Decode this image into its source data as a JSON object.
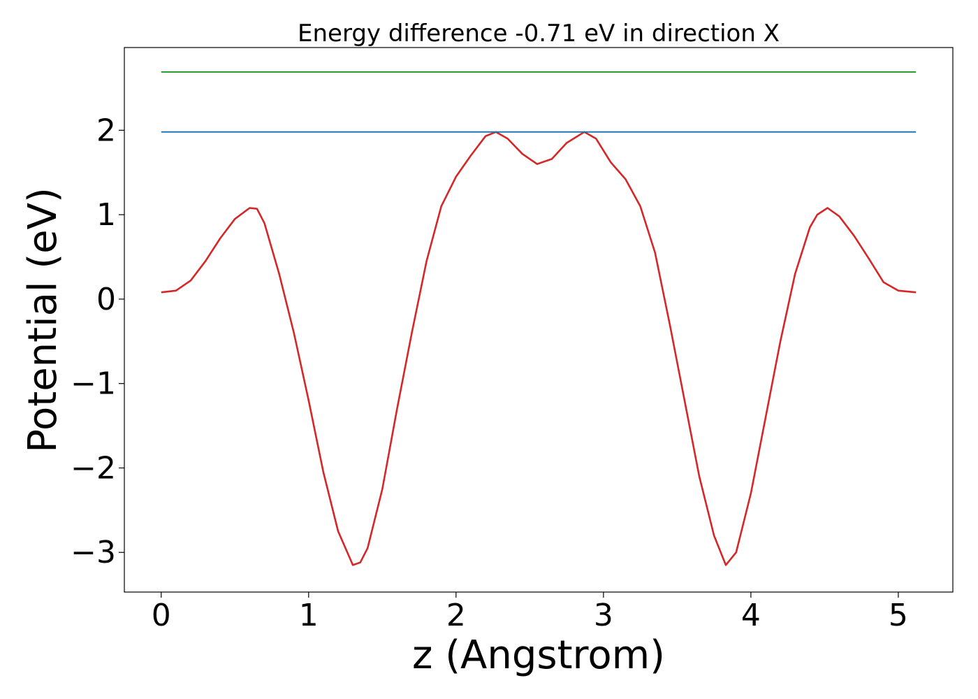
{
  "chart_data": {
    "type": "line",
    "title": "Energy difference -0.71 eV in direction X",
    "xlabel": "z (Angstrom)",
    "ylabel": "Potential (eV)",
    "xlim": [
      -0.25,
      5.37
    ],
    "ylim": [
      -3.47,
      2.98
    ],
    "xticks": [
      0,
      1,
      2,
      3,
      4,
      5
    ],
    "xtick_labels": [
      "0",
      "1",
      "2",
      "3",
      "4",
      "5"
    ],
    "yticks": [
      -3,
      -2,
      -1,
      0,
      1,
      2
    ],
    "ytick_labels": [
      "−3",
      "−2",
      "−1",
      "0",
      "1",
      "2"
    ],
    "grid": false,
    "legend": "none",
    "series": [
      {
        "color": "#d62728",
        "x": [
          0,
          0.1,
          0.2,
          0.3,
          0.4,
          0.5,
          0.6,
          0.65,
          0.7,
          0.8,
          0.9,
          1.0,
          1.1,
          1.2,
          1.3,
          1.35,
          1.4,
          1.5,
          1.6,
          1.7,
          1.8,
          1.9,
          2.0,
          2.1,
          2.2,
          2.27,
          2.35,
          2.45,
          2.55,
          2.65,
          2.75,
          2.87,
          2.95,
          3.05,
          3.15,
          3.25,
          3.35,
          3.45,
          3.55,
          3.65,
          3.75,
          3.83,
          3.9,
          4.0,
          4.1,
          4.2,
          4.3,
          4.4,
          4.45,
          4.52,
          4.6,
          4.7,
          4.8,
          4.9,
          5.0,
          5.12
        ],
        "values": [
          0.08,
          0.1,
          0.22,
          0.45,
          0.72,
          0.95,
          1.08,
          1.07,
          0.9,
          0.3,
          -0.4,
          -1.2,
          -2.05,
          -2.75,
          -3.15,
          -3.12,
          -2.95,
          -2.25,
          -1.3,
          -0.4,
          0.45,
          1.1,
          1.45,
          1.7,
          1.93,
          1.98,
          1.9,
          1.72,
          1.6,
          1.66,
          1.85,
          1.98,
          1.9,
          1.62,
          1.42,
          1.1,
          0.55,
          -0.3,
          -1.2,
          -2.1,
          -2.8,
          -3.15,
          -3.0,
          -2.3,
          -1.4,
          -0.5,
          0.3,
          0.85,
          1.0,
          1.08,
          0.98,
          0.75,
          0.48,
          0.2,
          0.1,
          0.08
        ]
      },
      {
        "color": "#1f77b4",
        "x": [
          0,
          5.12
        ],
        "values": [
          1.98,
          1.98
        ]
      },
      {
        "color": "#2ca02c",
        "x": [
          0,
          5.12
        ],
        "values": [
          2.69,
          2.69
        ]
      }
    ]
  }
}
